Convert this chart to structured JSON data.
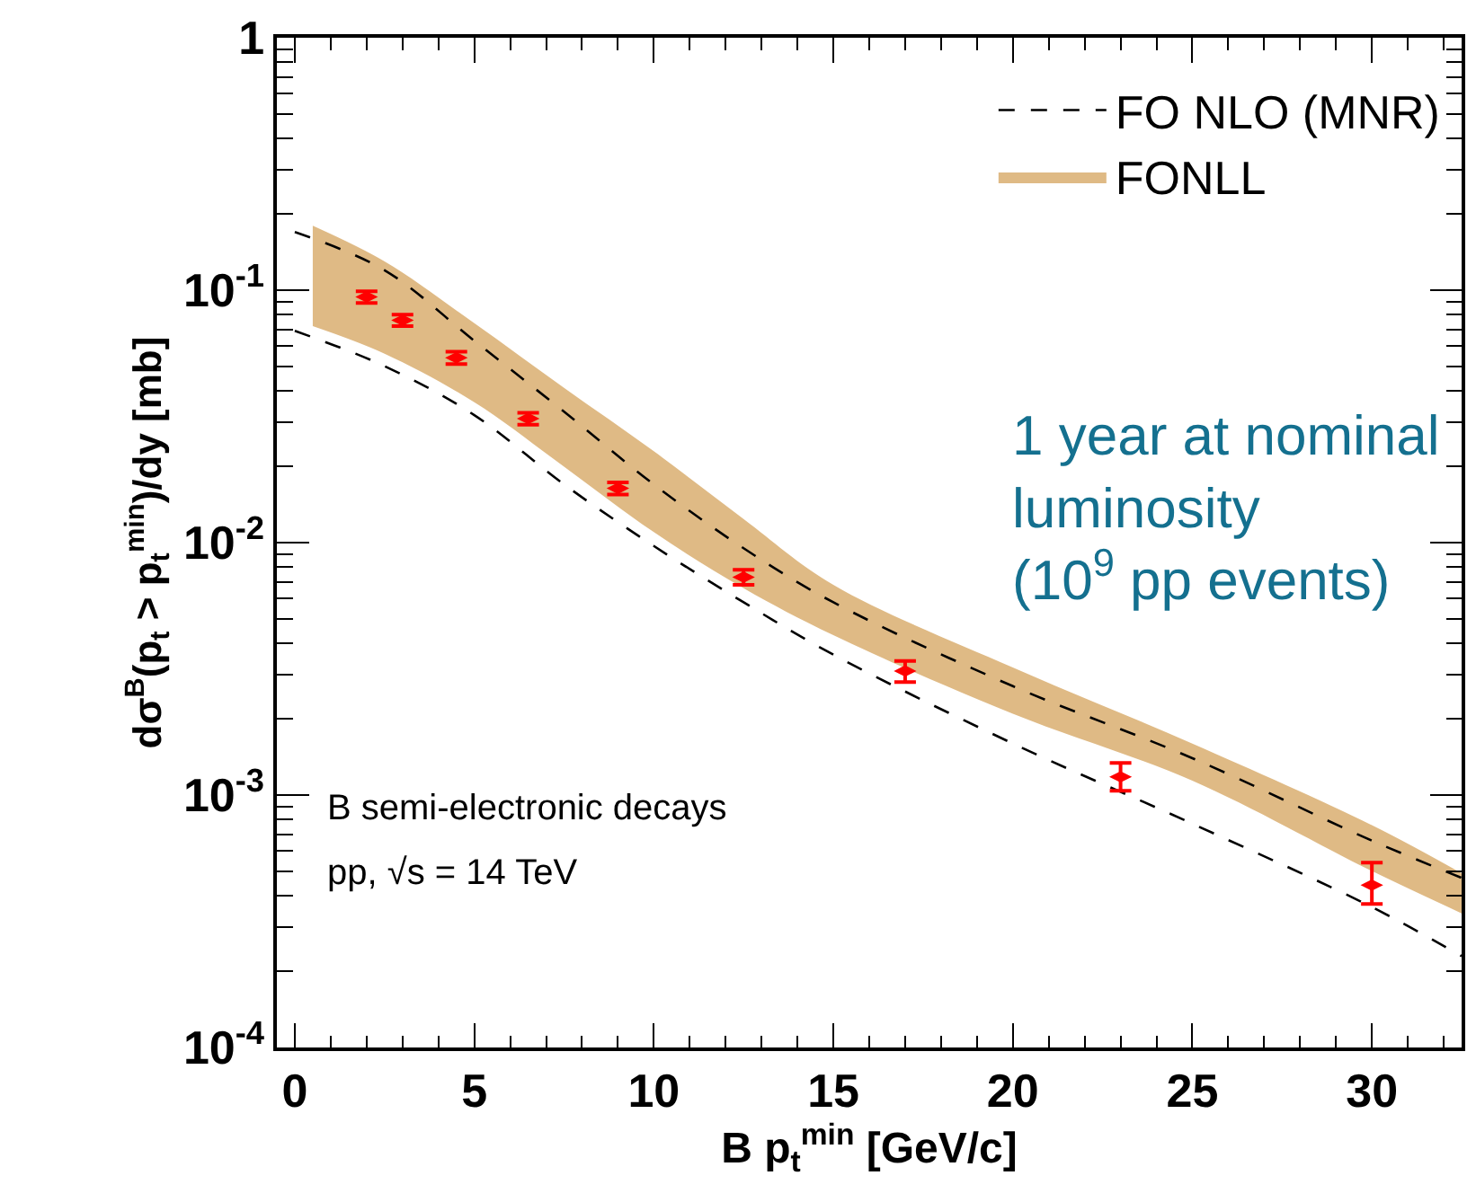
{
  "chart_data": {
    "type": "scatter",
    "xlabel": "B p$_{t}$$^{min}$ [GeV/c]",
    "ylabel": "dσ$^{B}$(p$_{t}$ > p$_{t}$$^{min}$)/dy [mb]",
    "log": "y",
    "xlim": [
      -0.5,
      32.5
    ],
    "xticks": [
      0,
      5,
      10,
      15,
      20,
      25,
      30
    ],
    "ylim": [
      0.0001,
      1
    ],
    "yticks": [
      {
        "value": 0.0001,
        "label": "10$^{-4}$"
      },
      {
        "value": 0.001,
        "label": "10$^{-3}$"
      },
      {
        "value": 0.01,
        "label": "10$^{-2}$"
      },
      {
        "value": 0.1,
        "label": "10$^{-1}$"
      },
      1
    ],
    "legend": "top right",
    "series": [
      {
        "name": "FONLL",
        "type": "area",
        "color": "#dfba85",
        "x": [
          0.5,
          2.5,
          5,
          7.5,
          10,
          12.5,
          15,
          20,
          25,
          30,
          32.5
        ],
        "values": [
          null,
          null,
          null,
          null,
          null,
          null,
          null,
          null,
          null,
          null,
          null
        ],
        "lower": [
          0.072,
          0.056,
          0.036,
          0.02,
          0.011,
          0.0066,
          0.0043,
          0.0021,
          0.00114,
          0.0005,
          0.00034
        ],
        "upper": [
          0.18,
          0.13,
          0.074,
          0.041,
          0.023,
          0.0124,
          0.0068,
          0.0032,
          0.0016,
          0.00076,
          0.00049
        ]
      },
      {
        "name": "FO NLO (MNR)",
        "type": "line",
        "line_style": "dashed",
        "color": "#000000",
        "x": [
          0,
          2.5,
          5,
          7.5,
          10,
          12.5,
          15,
          20,
          25,
          30,
          32.5
        ],
        "values": [
          0.17,
          0.12,
          0.063,
          0.033,
          0.017,
          0.0095,
          0.0058,
          0.0027,
          0.0014,
          0.00066,
          0.00047
        ]
      },
      {
        "type": "line",
        "line_style": "dashed",
        "color": "#000000",
        "x": [
          0,
          2.5,
          5,
          7.5,
          10,
          12.5,
          15,
          20,
          25,
          30,
          32.5
        ],
        "values": [
          0.069,
          0.05,
          0.032,
          0.017,
          0.0097,
          0.0058,
          0.0036,
          0.0016,
          0.00077,
          0.00036,
          0.00023
        ]
      },
      {
        "type": "scatter",
        "color": "#ff0000",
        "x": [
          2,
          3,
          4.5,
          6.5,
          9,
          12.5,
          17,
          23,
          30
        ],
        "values": [
          0.094,
          0.076,
          0.054,
          0.031,
          0.0164,
          0.0073,
          0.0031,
          0.00118,
          0.00044
        ],
        "errors": [
          0.005,
          0.004,
          0.003,
          0.0017,
          0.0009,
          0.0005,
          [
            0.0028,
            0.0034
          ],
          [
            0.00104,
            0.00134
          ],
          [
            0.00037,
            0.00054
          ]
        ]
      }
    ],
    "annotations": [
      "1 year at nominal luminosity (10$^{9}$ pp events)",
      "B semi-electronic decays",
      "pp, √s = 14 TeV"
    ]
  }
}
